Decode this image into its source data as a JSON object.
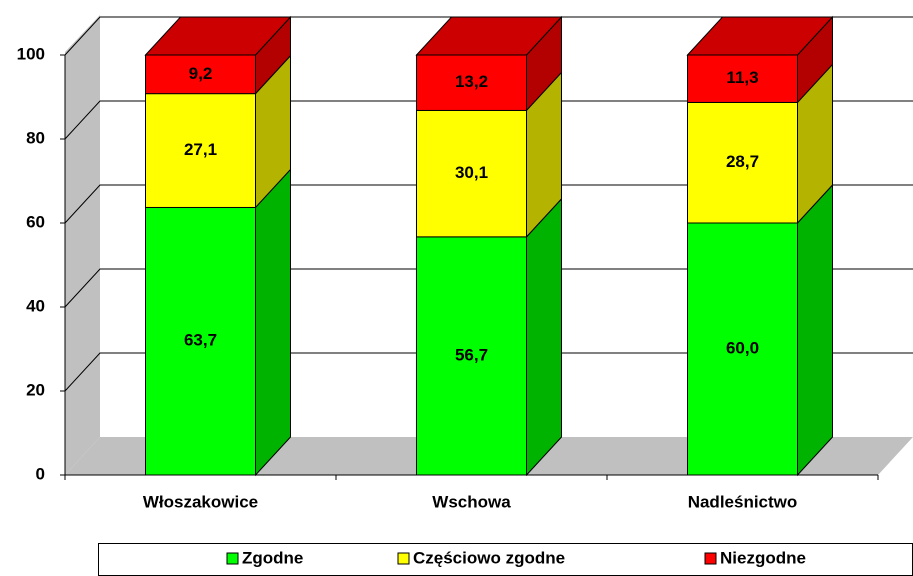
{
  "chart_data": {
    "type": "bar3d_stacked",
    "categories": [
      "Włoszakowice",
      "Wschowa",
      "Nadleśnictwo"
    ],
    "series": [
      {
        "name": "Zgodne",
        "color": "#00ff00",
        "values": [
          63.7,
          56.7,
          60.0
        ],
        "value_labels": [
          "63,7",
          "56,7",
          "60,0"
        ]
      },
      {
        "name": "Częściowo zgodne",
        "color": "#ffff00",
        "values": [
          27.1,
          30.1,
          28.7
        ],
        "value_labels": [
          "27,1",
          "30,1",
          "28,7"
        ]
      },
      {
        "name": "Niezgodne",
        "color": "#ff0000",
        "values": [
          9.2,
          13.2,
          11.3
        ],
        "value_labels": [
          "9,2",
          "13,2",
          "11,3"
        ]
      }
    ],
    "ylim": [
      0,
      100
    ],
    "yticks": [
      0,
      20,
      40,
      60,
      80,
      100
    ],
    "grid": true,
    "legend": "bottom"
  }
}
